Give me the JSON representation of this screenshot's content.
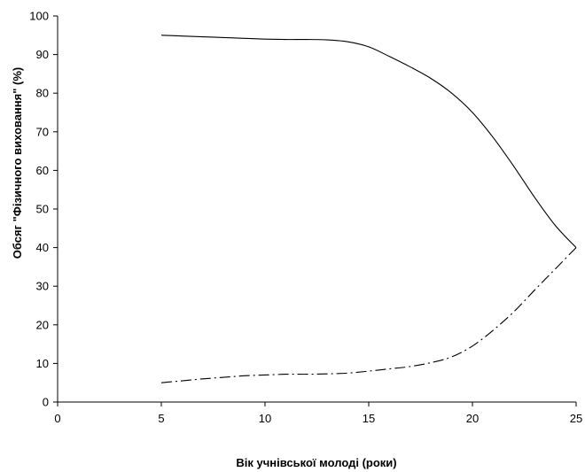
{
  "chart_data": {
    "type": "line",
    "title": "",
    "xlabel": "Вік учнівської молоді (роки)",
    "ylabel": "Обсяг \"Фізичного виховання\" (%)",
    "xlim": [
      0,
      25
    ],
    "ylim": [
      0,
      100
    ],
    "x_ticks": [
      "0",
      "5",
      "10",
      "15",
      "20",
      "25"
    ],
    "y_ticks": [
      "0",
      "10",
      "20",
      "30",
      "40",
      "50",
      "60",
      "70",
      "80",
      "90",
      "100"
    ],
    "grid": false,
    "legend": "none",
    "series": [
      {
        "style": "solid",
        "color": "#000000",
        "points": [
          [
            5,
            95
          ],
          [
            6,
            94.8
          ],
          [
            7,
            94.6
          ],
          [
            8,
            94.4
          ],
          [
            9,
            94.2
          ],
          [
            10,
            94
          ],
          [
            11,
            93.9
          ],
          [
            12,
            93.9
          ],
          [
            13,
            93.8
          ],
          [
            14,
            93.3
          ],
          [
            15,
            92
          ],
          [
            16,
            89.5
          ],
          [
            17,
            86.8
          ],
          [
            18,
            83.8
          ],
          [
            19,
            80
          ],
          [
            20,
            75
          ],
          [
            21,
            68.5
          ],
          [
            22,
            61
          ],
          [
            23,
            53
          ],
          [
            24,
            45.7
          ],
          [
            25,
            40
          ]
        ]
      },
      {
        "style": "dash-dot",
        "color": "#000000",
        "points": [
          [
            5,
            5
          ],
          [
            6,
            5.5
          ],
          [
            7,
            6
          ],
          [
            8,
            6.4
          ],
          [
            9,
            6.8
          ],
          [
            10,
            7
          ],
          [
            11,
            7.2
          ],
          [
            12,
            7.2
          ],
          [
            13,
            7.3
          ],
          [
            14,
            7.5
          ],
          [
            15,
            8
          ],
          [
            16,
            8.6
          ],
          [
            17,
            9.2
          ],
          [
            18,
            10.2
          ],
          [
            19,
            11.7
          ],
          [
            20,
            14.5
          ],
          [
            21,
            18.6
          ],
          [
            22,
            23.4
          ],
          [
            23,
            29
          ],
          [
            24,
            34.5
          ],
          [
            25,
            40
          ]
        ]
      }
    ]
  }
}
